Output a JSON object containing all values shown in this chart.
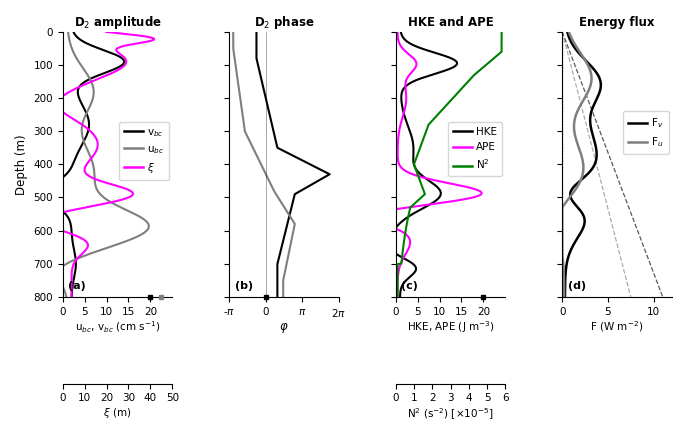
{
  "title_a": "D$_2$ amplitude",
  "title_b": "D$_2$ phase",
  "title_c": "HKE and APE",
  "title_d": "Energy flux",
  "depth_range": [
    0,
    800
  ],
  "panel_a": {
    "xlabel": "u$_{bc}$, v$_{bc}$ (cm s$^{-1}$)",
    "xlim": [
      0,
      25
    ],
    "xticks": [
      0,
      5,
      10,
      15,
      20
    ],
    "xlim_xi": [
      0,
      50
    ],
    "xticks_xi": [
      0,
      10,
      20,
      30,
      40,
      50
    ],
    "xlabel_xi": "$\\xi$ (m)"
  },
  "panel_b": {
    "xlabel": "$\\varphi$",
    "xlim_lo": -3.14159265,
    "xlim_hi": 6.2831853,
    "xtick_labels": [
      "-$\\pi$",
      "0",
      "$\\pi$",
      "2$\\pi$"
    ]
  },
  "panel_c": {
    "xlabel": "HKE, APE (J m$^{-3}$)",
    "xlim": [
      0,
      25
    ],
    "xticks": [
      0,
      5,
      10,
      15,
      20
    ],
    "xlim_N2": [
      0,
      6
    ],
    "xticks_N2": [
      0,
      1,
      2,
      3,
      4,
      5,
      6
    ],
    "xlabel_N2": "N$^2$ (s$^{-2}$) [$\\times$10$^{-5}$]"
  },
  "panel_d": {
    "xlabel": "F (W m$^{-2}$)",
    "xlim": [
      0,
      12
    ],
    "xticks": [
      0,
      5,
      10
    ]
  },
  "label_a": "(a)",
  "label_b": "(b)",
  "label_c": "(c)",
  "label_d": "(d)",
  "colors": {
    "vbc": "#000000",
    "ubc": "#7f7f7f",
    "xi": "#ff00ff",
    "HKE": "#000000",
    "APE": "#ff00ff",
    "N2": "#008000",
    "Fv": "#000000",
    "Fu": "#7f7f7f"
  },
  "yticks": [
    0,
    100,
    200,
    300,
    400,
    500,
    600,
    700,
    800
  ]
}
